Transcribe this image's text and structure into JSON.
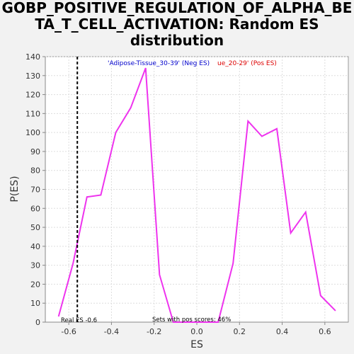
{
  "title_lines": [
    "GOBP_POSITIVE_REGULATION_OF_ALPHA_BE",
    "TA_T_CELL_ACTIVATION: Random ES",
    "distribution"
  ],
  "chart_data": {
    "type": "line",
    "title": "GOBP_POSITIVE_REGULATION_OF_ALPHA_BETA_T_CELL_ACTIVATION: Random ES distribution",
    "xlabel": "ES",
    "ylabel": "P(ES)",
    "xlim": [
      -0.71,
      0.71
    ],
    "ylim": [
      0,
      140
    ],
    "xticks": [
      -0.6,
      -0.4,
      -0.2,
      0.0,
      0.2,
      0.4,
      0.6
    ],
    "xtick_labels": [
      "-0.6",
      "-0.4",
      "-0.2",
      "0.0",
      "0.2",
      "0.4",
      "0.6"
    ],
    "yticks": [
      0,
      10,
      20,
      30,
      40,
      50,
      60,
      70,
      80,
      90,
      100,
      110,
      120,
      130,
      140
    ],
    "grid": true,
    "series": [
      {
        "color": "#ee33ee",
        "x": [
          -0.648,
          -0.58,
          -0.515,
          -0.45,
          -0.38,
          -0.31,
          -0.24,
          -0.175,
          -0.11,
          0.1,
          0.17,
          0.24,
          0.305,
          0.375,
          0.44,
          0.51,
          0.58,
          0.65
        ],
        "y": [
          3,
          31,
          66,
          67,
          100,
          113,
          134,
          25,
          0,
          0,
          31,
          106,
          98,
          102,
          47,
          58,
          14,
          6
        ]
      }
    ],
    "real_es": {
      "x": -0.56,
      "label": "Real ES -0.6",
      "color": "#000000"
    },
    "annotations": {
      "neg_label": "'Adipose-Tissue_30-39' (Neg ES)",
      "neg_color": "#0000cc",
      "pos_label": "'Adipose-Tissue_20-29' (Pos ES)",
      "pos_visible": "ue_20-29' (Pos ES)",
      "pos_color": "#dd0000",
      "sets_label": "Sets with pos scores: 46%"
    }
  }
}
